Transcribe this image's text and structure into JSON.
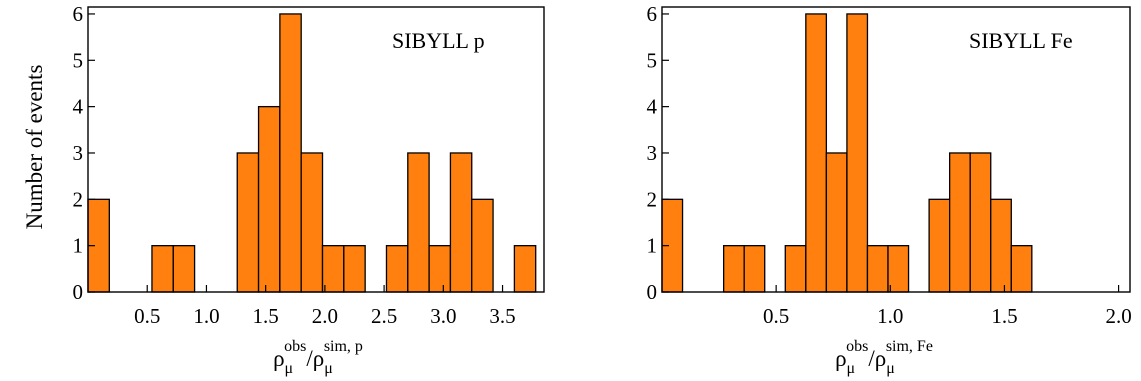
{
  "figure": {
    "ylabel": "Number of events",
    "bar_color": "#ff7f0f",
    "rho": "ρ",
    "mu": "μ",
    "obs": "obs",
    "slash": "/"
  },
  "chart_data": [
    {
      "type": "bar",
      "panel_label": "SIBYLL p",
      "xlabel_sim": "sim, p",
      "ylabel": "Number of events",
      "xlim": [
        0.0,
        3.85
      ],
      "ylim": [
        0,
        6.15
      ],
      "bin_width": 0.18,
      "x_ticks": [
        "0.5",
        "1.0",
        "1.5",
        "2.0",
        "2.5",
        "3.0",
        "3.5"
      ],
      "y_ticks": [
        "0",
        "1",
        "2",
        "3",
        "4",
        "5",
        "6"
      ],
      "bins": [
        {
          "x": 0.09,
          "count": 2
        },
        {
          "x": 0.63,
          "count": 1
        },
        {
          "x": 0.81,
          "count": 1
        },
        {
          "x": 1.35,
          "count": 3
        },
        {
          "x": 1.53,
          "count": 4
        },
        {
          "x": 1.71,
          "count": 6
        },
        {
          "x": 1.89,
          "count": 3
        },
        {
          "x": 2.07,
          "count": 1
        },
        {
          "x": 2.25,
          "count": 1
        },
        {
          "x": 2.61,
          "count": 1
        },
        {
          "x": 2.79,
          "count": 3
        },
        {
          "x": 2.97,
          "count": 1
        },
        {
          "x": 3.15,
          "count": 3
        },
        {
          "x": 3.33,
          "count": 2
        },
        {
          "x": 3.69,
          "count": 1
        }
      ]
    },
    {
      "type": "bar",
      "panel_label": "SIBYLL Fe",
      "xlabel_sim": "sim, Fe",
      "ylabel": "",
      "xlim": [
        0.0,
        2.05
      ],
      "ylim": [
        0,
        6.15
      ],
      "bin_width": 0.09,
      "x_ticks": [
        "0.5",
        "1.0",
        "1.5",
        "2.0"
      ],
      "y_ticks": [
        "0",
        "1",
        "2",
        "3",
        "4",
        "5",
        "6"
      ],
      "bins": [
        {
          "x": 0.045,
          "count": 2
        },
        {
          "x": 0.315,
          "count": 1
        },
        {
          "x": 0.405,
          "count": 1
        },
        {
          "x": 0.585,
          "count": 1
        },
        {
          "x": 0.675,
          "count": 6
        },
        {
          "x": 0.765,
          "count": 3
        },
        {
          "x": 0.855,
          "count": 6
        },
        {
          "x": 0.945,
          "count": 1
        },
        {
          "x": 1.035,
          "count": 1
        },
        {
          "x": 1.215,
          "count": 2
        },
        {
          "x": 1.305,
          "count": 3
        },
        {
          "x": 1.395,
          "count": 3
        },
        {
          "x": 1.485,
          "count": 2
        },
        {
          "x": 1.575,
          "count": 1
        }
      ]
    }
  ]
}
